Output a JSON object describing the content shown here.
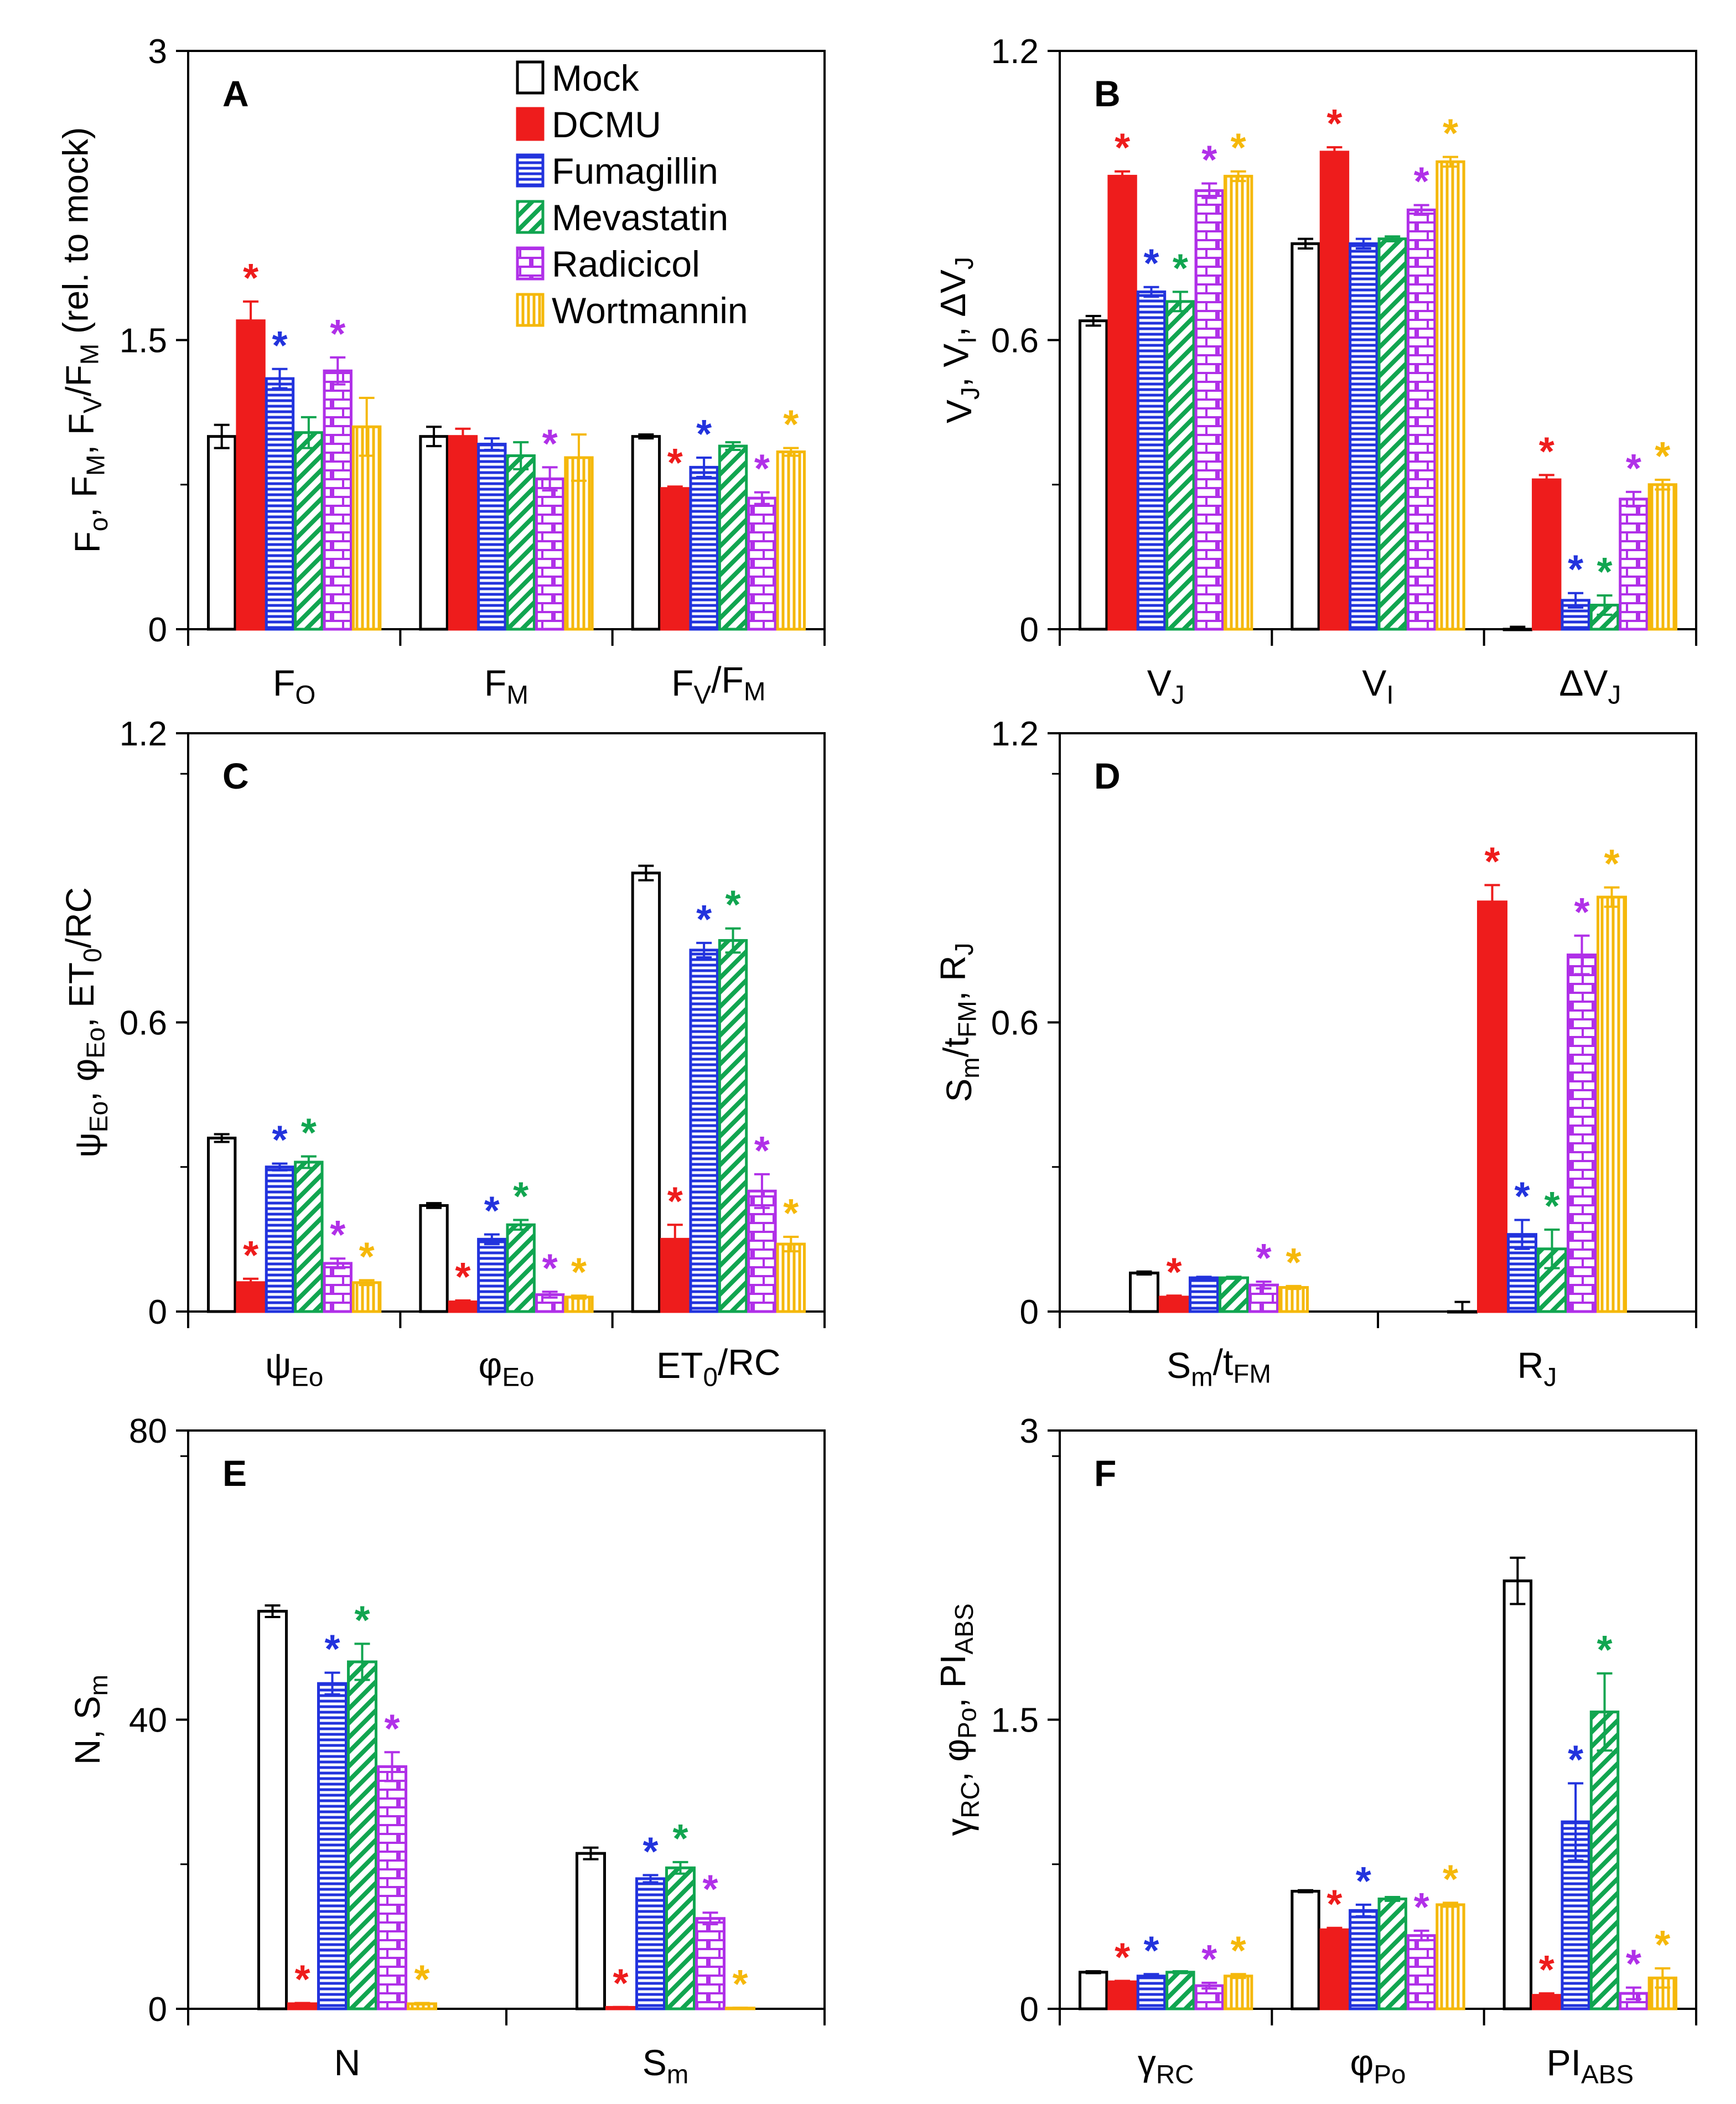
{
  "legend": [
    {
      "key": "mock",
      "label": "Mock"
    },
    {
      "key": "dcmu",
      "label": "DCMU"
    },
    {
      "key": "fumagillin",
      "label": "Fumagillin"
    },
    {
      "key": "mevastatin",
      "label": "Mevastatin"
    },
    {
      "key": "radicicol",
      "label": "Radicicol"
    },
    {
      "key": "wortmannin",
      "label": "Wortmannin"
    }
  ],
  "series_colors": {
    "mock": "#000000",
    "dcmu": "#ee1c1c",
    "fumagillin": "#2233dd",
    "mevastatin": "#11a550",
    "radicicol": "#b030e8",
    "wortmannin": "#f5b80a"
  },
  "chart_data": [
    {
      "panel": "A",
      "type": "bar",
      "ylabel": "F_o, F_M, F_V/F_M (rel. to mock)",
      "ylim": [
        0,
        3
      ],
      "yticks": [
        "0",
        "1.5",
        "3"
      ],
      "categories": [
        "F_O",
        "F_M",
        "F_V/F_M"
      ],
      "series": [
        {
          "name": "Mock",
          "values": [
            1.0,
            1.0,
            1.0
          ],
          "errors": [
            0.06,
            0.05,
            0.01
          ],
          "significant": [
            false,
            false,
            false
          ]
        },
        {
          "name": "DCMU",
          "values": [
            1.6,
            1.0,
            0.73
          ],
          "errors": [
            0.1,
            0.04,
            0.01
          ],
          "significant": [
            true,
            false,
            true
          ]
        },
        {
          "name": "Fumagillin",
          "values": [
            1.3,
            0.96,
            0.84
          ],
          "errors": [
            0.05,
            0.03,
            0.05
          ],
          "significant": [
            true,
            false,
            true
          ]
        },
        {
          "name": "Mevastatin",
          "values": [
            1.02,
            0.9,
            0.95
          ],
          "errors": [
            0.08,
            0.07,
            0.02
          ],
          "significant": [
            false,
            false,
            false
          ]
        },
        {
          "name": "Radicicol",
          "values": [
            1.34,
            0.78,
            0.68
          ],
          "errors": [
            0.07,
            0.06,
            0.03
          ],
          "significant": [
            true,
            true,
            true
          ]
        },
        {
          "name": "Wortmannin",
          "values": [
            1.05,
            0.89,
            0.92
          ],
          "errors": [
            0.15,
            0.12,
            0.02
          ],
          "significant": [
            false,
            false,
            true
          ]
        }
      ]
    },
    {
      "panel": "B",
      "type": "bar",
      "ylabel": "V_J, V_I, ΔV_J",
      "ylim": [
        0,
        1.2
      ],
      "yticks": [
        "0",
        "0.6",
        "1.2"
      ],
      "categories": [
        "V_J",
        "V_I",
        "ΔV_J"
      ],
      "series": [
        {
          "name": "Mock",
          "values": [
            0.64,
            0.8,
            0.0
          ],
          "errors": [
            0.01,
            0.01,
            0.005
          ],
          "significant": [
            false,
            false,
            false
          ]
        },
        {
          "name": "DCMU",
          "values": [
            0.94,
            0.99,
            0.31
          ],
          "errors": [
            0.01,
            0.01,
            0.01
          ],
          "significant": [
            true,
            true,
            true
          ]
        },
        {
          "name": "Fumagillin",
          "values": [
            0.7,
            0.8,
            0.06
          ],
          "errors": [
            0.01,
            0.01,
            0.015
          ],
          "significant": [
            true,
            false,
            true
          ]
        },
        {
          "name": "Mevastatin",
          "values": [
            0.68,
            0.81,
            0.05
          ],
          "errors": [
            0.02,
            0.005,
            0.02
          ],
          "significant": [
            true,
            false,
            true
          ]
        },
        {
          "name": "Radicicol",
          "values": [
            0.91,
            0.87,
            0.27
          ],
          "errors": [
            0.015,
            0.01,
            0.015
          ],
          "significant": [
            true,
            true,
            true
          ]
        },
        {
          "name": "Wortmannin",
          "values": [
            0.94,
            0.97,
            0.3
          ],
          "errors": [
            0.01,
            0.01,
            0.01
          ],
          "significant": [
            true,
            true,
            true
          ]
        }
      ]
    },
    {
      "panel": "C",
      "type": "bar",
      "ylabel": "ψ_Eo, φ_Eo, ET_0/RC",
      "ylim": [
        0,
        1.2
      ],
      "yticks": [
        "0",
        "0.6",
        "1.2"
      ],
      "categories": [
        "ψ_Eo",
        "φ_Eo",
        "ET_0/RC"
      ],
      "series": [
        {
          "name": "Mock",
          "values": [
            0.36,
            0.22,
            0.91
          ],
          "errors": [
            0.008,
            0.005,
            0.015
          ],
          "significant": [
            false,
            false,
            false
          ]
        },
        {
          "name": "DCMU",
          "values": [
            0.06,
            0.02,
            0.15
          ],
          "errors": [
            0.008,
            0.003,
            0.03
          ],
          "significant": [
            true,
            true,
            true
          ]
        },
        {
          "name": "Fumagillin",
          "values": [
            0.3,
            0.15,
            0.75
          ],
          "errors": [
            0.007,
            0.01,
            0.015
          ],
          "significant": [
            true,
            true,
            true
          ]
        },
        {
          "name": "Mevastatin",
          "values": [
            0.31,
            0.18,
            0.77
          ],
          "errors": [
            0.012,
            0.01,
            0.025
          ],
          "significant": [
            true,
            true,
            true
          ]
        },
        {
          "name": "Radicicol",
          "values": [
            0.1,
            0.035,
            0.25
          ],
          "errors": [
            0.01,
            0.006,
            0.035
          ],
          "significant": [
            true,
            true,
            true
          ]
        },
        {
          "name": "Wortmannin",
          "values": [
            0.06,
            0.03,
            0.14
          ],
          "errors": [
            0.005,
            0.003,
            0.015
          ],
          "significant": [
            true,
            true,
            true
          ]
        }
      ]
    },
    {
      "panel": "D",
      "type": "bar",
      "ylabel": "S_m/t_FM, R_J",
      "ylim": [
        0,
        1.2
      ],
      "yticks": [
        "0",
        "0.6",
        "1.2"
      ],
      "categories": [
        "S_m/t_FM",
        "R_J"
      ],
      "series": [
        {
          "name": "Mock",
          "values": [
            0.08,
            0.0
          ],
          "errors": [
            0.003,
            0.02
          ],
          "significant": [
            false,
            false
          ]
        },
        {
          "name": "DCMU",
          "values": [
            0.03,
            0.85
          ],
          "errors": [
            0.003,
            0.035
          ],
          "significant": [
            true,
            true
          ]
        },
        {
          "name": "Fumagillin",
          "values": [
            0.07,
            0.16
          ],
          "errors": [
            0.002,
            0.03
          ],
          "significant": [
            false,
            true
          ]
        },
        {
          "name": "Mevastatin",
          "values": [
            0.07,
            0.13
          ],
          "errors": [
            0.002,
            0.04
          ],
          "significant": [
            false,
            true
          ]
        },
        {
          "name": "Radicicol",
          "values": [
            0.055,
            0.74
          ],
          "errors": [
            0.007,
            0.04
          ],
          "significant": [
            true,
            true
          ]
        },
        {
          "name": "Wortmannin",
          "values": [
            0.05,
            0.86
          ],
          "errors": [
            0.003,
            0.02
          ],
          "significant": [
            true,
            true
          ]
        }
      ]
    },
    {
      "panel": "E",
      "type": "bar",
      "ylabel": "N, S_m",
      "ylim": [
        0,
        80
      ],
      "yticks": [
        "0",
        "40",
        "80"
      ],
      "categories": [
        "N",
        "S_m"
      ],
      "series": [
        {
          "name": "Mock",
          "values": [
            55,
            21.5
          ],
          "errors": [
            0.8,
            0.8
          ],
          "significant": [
            false,
            false
          ]
        },
        {
          "name": "DCMU",
          "values": [
            0.7,
            0.2
          ],
          "errors": [
            0.1,
            0.05
          ],
          "significant": [
            true,
            true
          ]
        },
        {
          "name": "Fumagillin",
          "values": [
            45,
            18
          ],
          "errors": [
            1.5,
            0.5
          ],
          "significant": [
            true,
            true
          ]
        },
        {
          "name": "Mevastatin",
          "values": [
            48,
            19.5
          ],
          "errors": [
            2.5,
            0.8
          ],
          "significant": [
            true,
            true
          ]
        },
        {
          "name": "Radicicol",
          "values": [
            33.5,
            12.5
          ],
          "errors": [
            2.0,
            0.8
          ],
          "significant": [
            true,
            true
          ]
        },
        {
          "name": "Wortmannin",
          "values": [
            0.7,
            0.1
          ],
          "errors": [
            0.1,
            0.05
          ],
          "significant": [
            true,
            true
          ]
        }
      ]
    },
    {
      "panel": "F",
      "type": "bar",
      "ylabel": "γ_RC, φ_Po, PI_ABS",
      "ylim": [
        0,
        3
      ],
      "yticks": [
        "0",
        "1.5",
        "3"
      ],
      "categories": [
        "γ_RC",
        "φ_Po",
        "PI_ABS"
      ],
      "series": [
        {
          "name": "Mock",
          "values": [
            0.19,
            0.61,
            2.22
          ],
          "errors": [
            0.005,
            0.005,
            0.12
          ],
          "significant": [
            false,
            false,
            false
          ]
        },
        {
          "name": "DCMU",
          "values": [
            0.14,
            0.41,
            0.07
          ],
          "errors": [
            0.005,
            0.01,
            0.01
          ],
          "significant": [
            true,
            true,
            true
          ]
        },
        {
          "name": "Fumagillin",
          "values": [
            0.17,
            0.51,
            0.97
          ],
          "errors": [
            0.01,
            0.03,
            0.2
          ],
          "significant": [
            true,
            true,
            true
          ]
        },
        {
          "name": "Mevastatin",
          "values": [
            0.19,
            0.57,
            1.54
          ],
          "errors": [
            0.005,
            0.01,
            0.2
          ],
          "significant": [
            false,
            false,
            true
          ]
        },
        {
          "name": "Radicicol",
          "values": [
            0.12,
            0.38,
            0.08
          ],
          "errors": [
            0.015,
            0.025,
            0.03
          ],
          "significant": [
            true,
            true,
            true
          ]
        },
        {
          "name": "Wortmannin",
          "values": [
            0.17,
            0.54,
            0.16
          ],
          "errors": [
            0.01,
            0.01,
            0.05
          ],
          "significant": [
            true,
            true,
            true
          ]
        }
      ]
    }
  ]
}
